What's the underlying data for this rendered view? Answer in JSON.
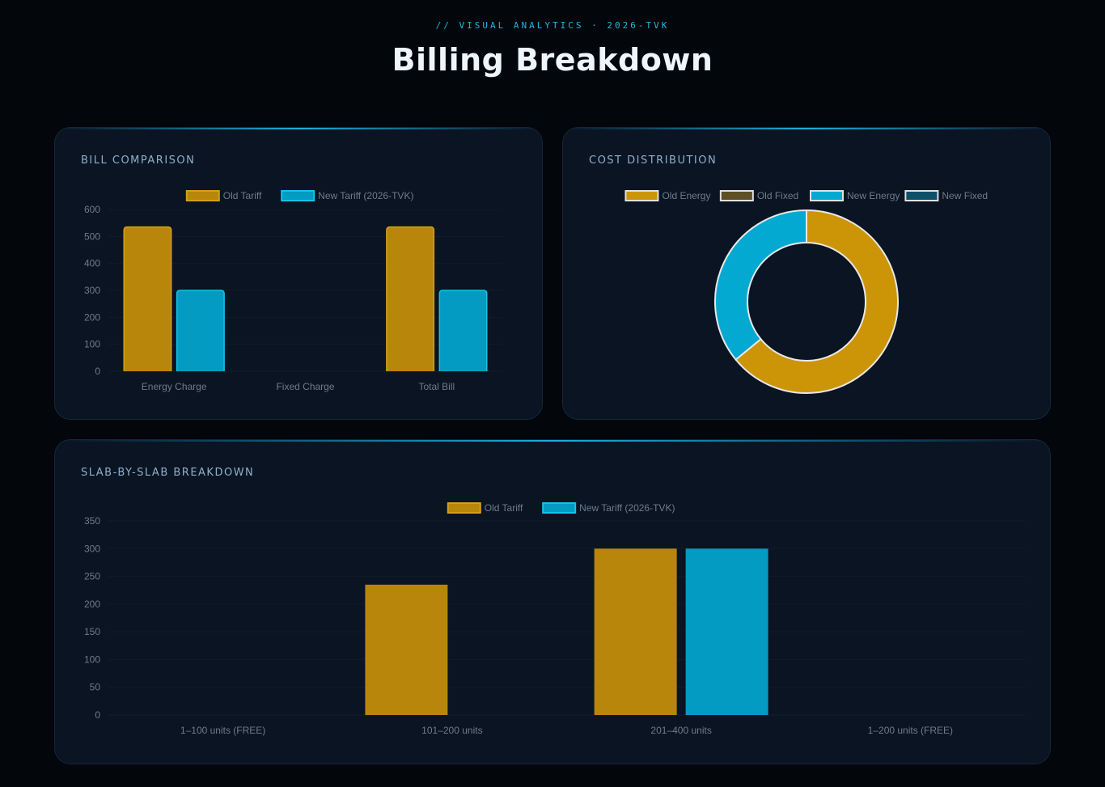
{
  "header": {
    "eyebrow": "// VISUAL ANALYTICS · 2026-TVK",
    "title": "Billing Breakdown"
  },
  "colors": {
    "old": "#b8860b",
    "old_border": "#d4a017",
    "new": "#049bc2",
    "new_border": "#14c3ea",
    "old_energy": "#cc9508",
    "old_fixed": "#5e4f24",
    "new_energy": "#04a9d2",
    "new_fixed": "#0f4f6a",
    "slice_border": "#e8e8e8"
  },
  "cards": {
    "bill_comparison": {
      "title": "BILL COMPARISON"
    },
    "cost_distribution": {
      "title": "COST DISTRIBUTION"
    },
    "slab_breakdown": {
      "title": "SLAB-BY-SLAB BREAKDOWN"
    }
  },
  "chart_data": [
    {
      "id": "bill_comparison",
      "type": "bar",
      "categories": [
        "Energy Charge",
        "Fixed Charge",
        "Total Bill"
      ],
      "series": [
        {
          "name": "Old Tariff",
          "values": [
            535,
            0,
            535
          ]
        },
        {
          "name": "New Tariff (2026-TVK)",
          "values": [
            300,
            0,
            300
          ]
        }
      ],
      "ylim": [
        0,
        600
      ],
      "yticks": [
        0,
        100,
        200,
        300,
        400,
        500,
        600
      ],
      "legend": "top-center"
    },
    {
      "id": "cost_distribution",
      "type": "pie",
      "variant": "doughnut",
      "labels": [
        "Old Energy",
        "Old Fixed",
        "New Energy",
        "New Fixed"
      ],
      "values": [
        535,
        0,
        300,
        0
      ],
      "legend": "top-center"
    },
    {
      "id": "slab_breakdown",
      "type": "bar",
      "categories": [
        "1–100 units (FREE)",
        "101–200 units",
        "201–400 units",
        "1–200 units (FREE)"
      ],
      "series": [
        {
          "name": "Old Tariff",
          "values": [
            0,
            235,
            300,
            0
          ]
        },
        {
          "name": "New Tariff (2026-TVK)",
          "values": [
            0,
            0,
            300,
            0
          ]
        }
      ],
      "ylim": [
        0,
        350
      ],
      "yticks": [
        0,
        50,
        100,
        150,
        200,
        250,
        300,
        350
      ],
      "legend": "top-center"
    }
  ]
}
